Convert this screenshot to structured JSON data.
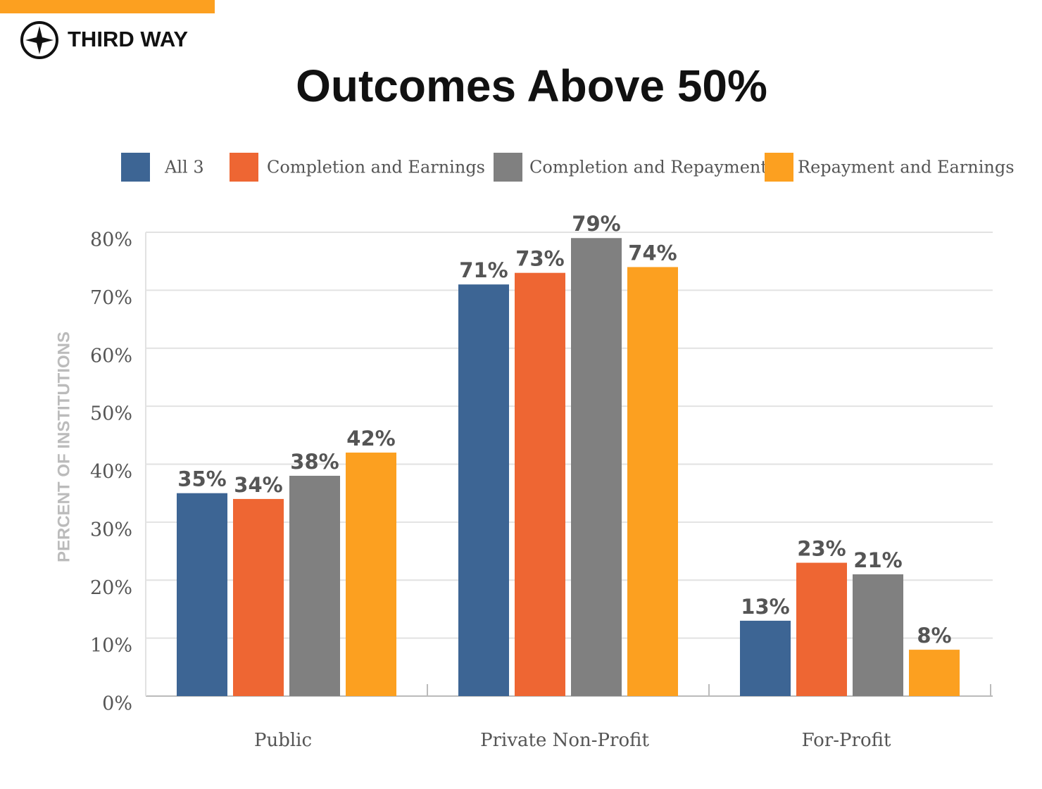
{
  "header": {
    "brand": "THIRD WAY"
  },
  "chart_data": {
    "type": "bar",
    "title": "Outcomes Above 50%",
    "y_label": "PERCENT OF INSTITUTIONS",
    "categories": [
      "Public",
      "Private Non-Profit",
      "For-Profit"
    ],
    "series": [
      {
        "name": "All 3",
        "color": "#3d6594",
        "values": [
          35,
          71,
          13
        ],
        "value_labels": [
          "35%",
          "71%",
          "13%"
        ]
      },
      {
        "name": "Completion and Earnings",
        "color": "#ee6633",
        "values": [
          34,
          73,
          23
        ],
        "value_labels": [
          "34%",
          "73%",
          "23%"
        ]
      },
      {
        "name": "Completion and Repayment",
        "color": "#808080",
        "values": [
          38,
          79,
          21
        ],
        "value_labels": [
          "38%",
          "79%",
          "21%"
        ]
      },
      {
        "name": "Repayment and Earnings",
        "color": "#fca020",
        "values": [
          42,
          74,
          8
        ],
        "value_labels": [
          "42%",
          "74%",
          "8%"
        ]
      }
    ],
    "ylim": [
      0,
      80
    ],
    "yticks": [
      {
        "value": 0,
        "label": "0%"
      },
      {
        "value": 10,
        "label": "10%"
      },
      {
        "value": 20,
        "label": "20%"
      },
      {
        "value": 30,
        "label": "30%"
      },
      {
        "value": 40,
        "label": "40%"
      },
      {
        "value": 50,
        "label": "50%"
      },
      {
        "value": 60,
        "label": "60%"
      },
      {
        "value": 70,
        "label": "70%"
      },
      {
        "value": 80,
        "label": "80%"
      }
    ],
    "grid": true,
    "legend": "top"
  }
}
